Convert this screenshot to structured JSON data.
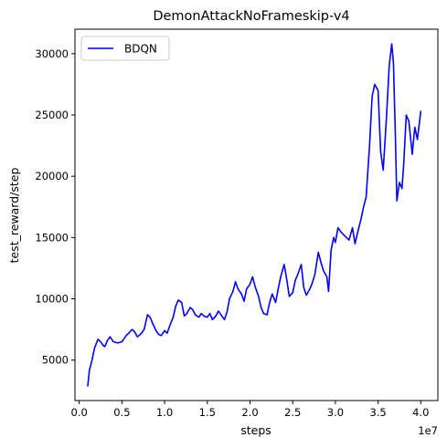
{
  "chart_data": {
    "type": "line",
    "title": "DemonAttackNoFrameskip-v4",
    "xlabel": "steps",
    "ylabel": "test_reward/step",
    "x_offset_label": "1e7",
    "x_scale": 10000000,
    "xlim": [
      -0.05,
      4.2
    ],
    "ylim": [
      1700,
      32000
    ],
    "x_ticks": [
      0.0,
      0.5,
      1.0,
      1.5,
      2.0,
      2.5,
      3.0,
      3.5,
      4.0
    ],
    "x_tick_labels": [
      "0.0",
      "0.5",
      "1.0",
      "1.5",
      "2.0",
      "2.5",
      "3.0",
      "3.5",
      "4.0"
    ],
    "y_ticks": [
      5000,
      10000,
      15000,
      20000,
      25000,
      30000
    ],
    "y_tick_labels": [
      "5000",
      "10000",
      "15000",
      "20000",
      "25000",
      "30000"
    ],
    "grid": false,
    "legend_position": "top-left",
    "series": [
      {
        "name": "BDQN",
        "color": "#0000ff",
        "x": [
          0.1,
          0.12,
          0.15,
          0.18,
          0.22,
          0.25,
          0.28,
          0.3,
          0.33,
          0.36,
          0.4,
          0.45,
          0.5,
          0.55,
          0.58,
          0.62,
          0.65,
          0.68,
          0.7,
          0.73,
          0.76,
          0.8,
          0.83,
          0.86,
          0.9,
          0.93,
          0.96,
          1.0,
          1.03,
          1.06,
          1.1,
          1.13,
          1.16,
          1.2,
          1.23,
          1.26,
          1.3,
          1.33,
          1.36,
          1.4,
          1.43,
          1.46,
          1.5,
          1.53,
          1.56,
          1.6,
          1.63,
          1.66,
          1.7,
          1.73,
          1.76,
          1.8,
          1.83,
          1.86,
          1.9,
          1.93,
          1.96,
          2.0,
          2.03,
          2.06,
          2.1,
          2.13,
          2.16,
          2.2,
          2.23,
          2.26,
          2.3,
          2.33,
          2.36,
          2.4,
          2.43,
          2.46,
          2.5,
          2.53,
          2.56,
          2.6,
          2.63,
          2.66,
          2.7,
          2.73,
          2.76,
          2.8,
          2.83,
          2.86,
          2.9,
          2.92,
          2.95,
          2.98,
          3.0,
          3.03,
          3.06,
          3.1,
          3.13,
          3.16,
          3.2,
          3.23,
          3.26,
          3.3,
          3.33,
          3.36,
          3.4,
          3.43,
          3.46,
          3.5,
          3.53,
          3.56,
          3.6,
          3.63,
          3.66,
          3.68,
          3.7,
          3.72,
          3.75,
          3.78,
          3.8,
          3.83,
          3.86,
          3.9,
          3.93,
          3.96,
          4.0
        ],
        "y": [
          2900,
          4200,
          5000,
          6000,
          6700,
          6500,
          6200,
          6100,
          6600,
          6900,
          6500,
          6400,
          6500,
          7000,
          7200,
          7500,
          7300,
          6900,
          7000,
          7200,
          7500,
          8700,
          8500,
          8000,
          7400,
          7100,
          7000,
          7400,
          7200,
          7800,
          8500,
          9400,
          9900,
          9700,
          8600,
          8800,
          9300,
          9100,
          8700,
          8500,
          8800,
          8600,
          8500,
          8800,
          8300,
          8600,
          9000,
          8700,
          8300,
          8900,
          10000,
          10600,
          11400,
          10800,
          10400,
          9800,
          10800,
          11200,
          11800,
          11000,
          10200,
          9300,
          8800,
          8700,
          9700,
          10400,
          9700,
          10800,
          11800,
          12800,
          11600,
          10200,
          10500,
          11500,
          12000,
          12800,
          10900,
          10300,
          10800,
          11300,
          12000,
          13800,
          13000,
          12300,
          11800,
          10600,
          14000,
          15000,
          14600,
          15800,
          15500,
          15200,
          15000,
          14800,
          15800,
          14500,
          15400,
          16500,
          17500,
          18300,
          22500,
          26500,
          27500,
          27000,
          22000,
          20500,
          25000,
          29000,
          30800,
          29200,
          24000,
          18000,
          19500,
          19000,
          21000,
          25000,
          24500,
          21800,
          24000,
          23000,
          25300
        ]
      }
    ]
  }
}
